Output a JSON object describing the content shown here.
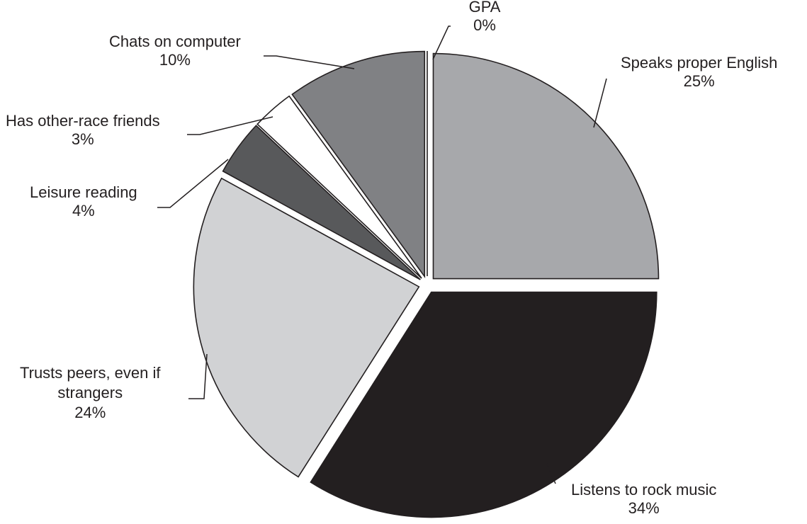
{
  "chart_data": {
    "type": "pie",
    "slices": [
      {
        "label": "Speaks proper English",
        "value": 25,
        "value_label": "25%",
        "color": "#a7a8ab"
      },
      {
        "label": "Listens to rock music",
        "value": 34,
        "value_label": "34%",
        "color": "#231f20"
      },
      {
        "label": "Trusts peers, even if strangers",
        "label_lines": [
          "Trusts peers, even if",
          "strangers"
        ],
        "value": 24,
        "value_label": "24%",
        "color": "#d1d2d4"
      },
      {
        "label": "Leisure reading",
        "value": 4,
        "value_label": "4%",
        "color": "#58595b"
      },
      {
        "label": "Has other-race friends",
        "value": 3,
        "value_label": "3%",
        "color": "#ffffff"
      },
      {
        "label": "Chats on computer",
        "value": 10,
        "value_label": "10%",
        "color": "#808184"
      },
      {
        "label": "GPA",
        "value": 0,
        "value_label": "0%",
        "color": "#ffffff"
      }
    ],
    "start": "top",
    "direction": "clockwise",
    "exploded": true
  }
}
